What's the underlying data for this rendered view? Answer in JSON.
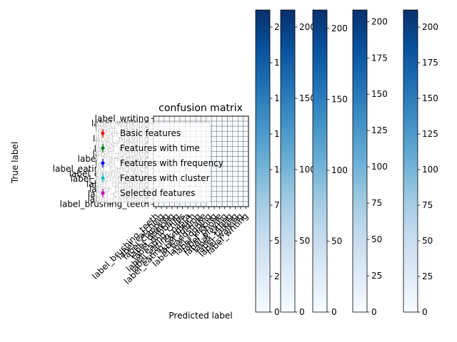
{
  "chart_data": {
    "type": "heatmap",
    "title": "confusion matrix",
    "xlabel": "Predicted label",
    "ylabel": "True label",
    "cmap": "Blues",
    "color_low": "#f7fbff",
    "color_high": "#08306b",
    "value_range": [
      0,
      212
    ],
    "categories_y": [
      "label_writing",
      "label_walking",
      "label_talking",
      "label_sitting",
      "label_playing",
      "label_phone",
      "label_kicking",
      "label_jogging",
      "label_handshake",
      "label_folding",
      "label_eating_sandwich",
      "label_eating_pasta",
      "label_eating_chips",
      "label_dribbling",
      "label_drinking",
      "label_clapping",
      "label_catching",
      "label_brushing_teeth"
    ],
    "categories_x": [
      "label_brushing_teeth",
      "label_catching",
      "label_clapping",
      "label_drinking",
      "label_dribbling",
      "label_eating_chips",
      "label_eating_pasta",
      "label_eating_sandwich",
      "label_folding",
      "label_handshake",
      "label_jogging",
      "label_kicking",
      "label_phone",
      "label_playing",
      "label_sitting",
      "label_talking",
      "label_walking",
      "label_writing"
    ],
    "legend": {
      "location": "upper-left",
      "entries": [
        {
          "label": "Basic features",
          "color": "#ff0000",
          "marker": "errorbar-dot"
        },
        {
          "label": "Features with time",
          "color": "#008000",
          "marker": "errorbar-dot"
        },
        {
          "label": "Features with frequency",
          "color": "#0000ff",
          "marker": "errorbar-dot"
        },
        {
          "label": "Features with cluster",
          "color": "#00bfbf",
          "marker": "errorbar-dot"
        },
        {
          "label": "Selected features",
          "color": "#bf00bf",
          "marker": "errorbar-dot"
        }
      ]
    },
    "colorbars": [
      {
        "ticks": [
          0,
          25,
          50,
          75,
          100,
          125,
          150,
          175,
          200
        ],
        "max": 212
      },
      {
        "ticks": [
          0,
          50,
          100,
          150,
          200
        ],
        "max": 212
      },
      {
        "ticks": [
          0,
          50,
          100,
          150,
          200
        ],
        "max": 213
      },
      {
        "ticks": [
          0,
          25,
          50,
          75,
          100,
          125,
          150,
          175,
          200
        ],
        "max": 208
      },
      {
        "ticks": [
          0,
          25,
          50,
          75,
          100,
          125,
          150,
          175,
          200
        ],
        "max": 212
      }
    ]
  }
}
